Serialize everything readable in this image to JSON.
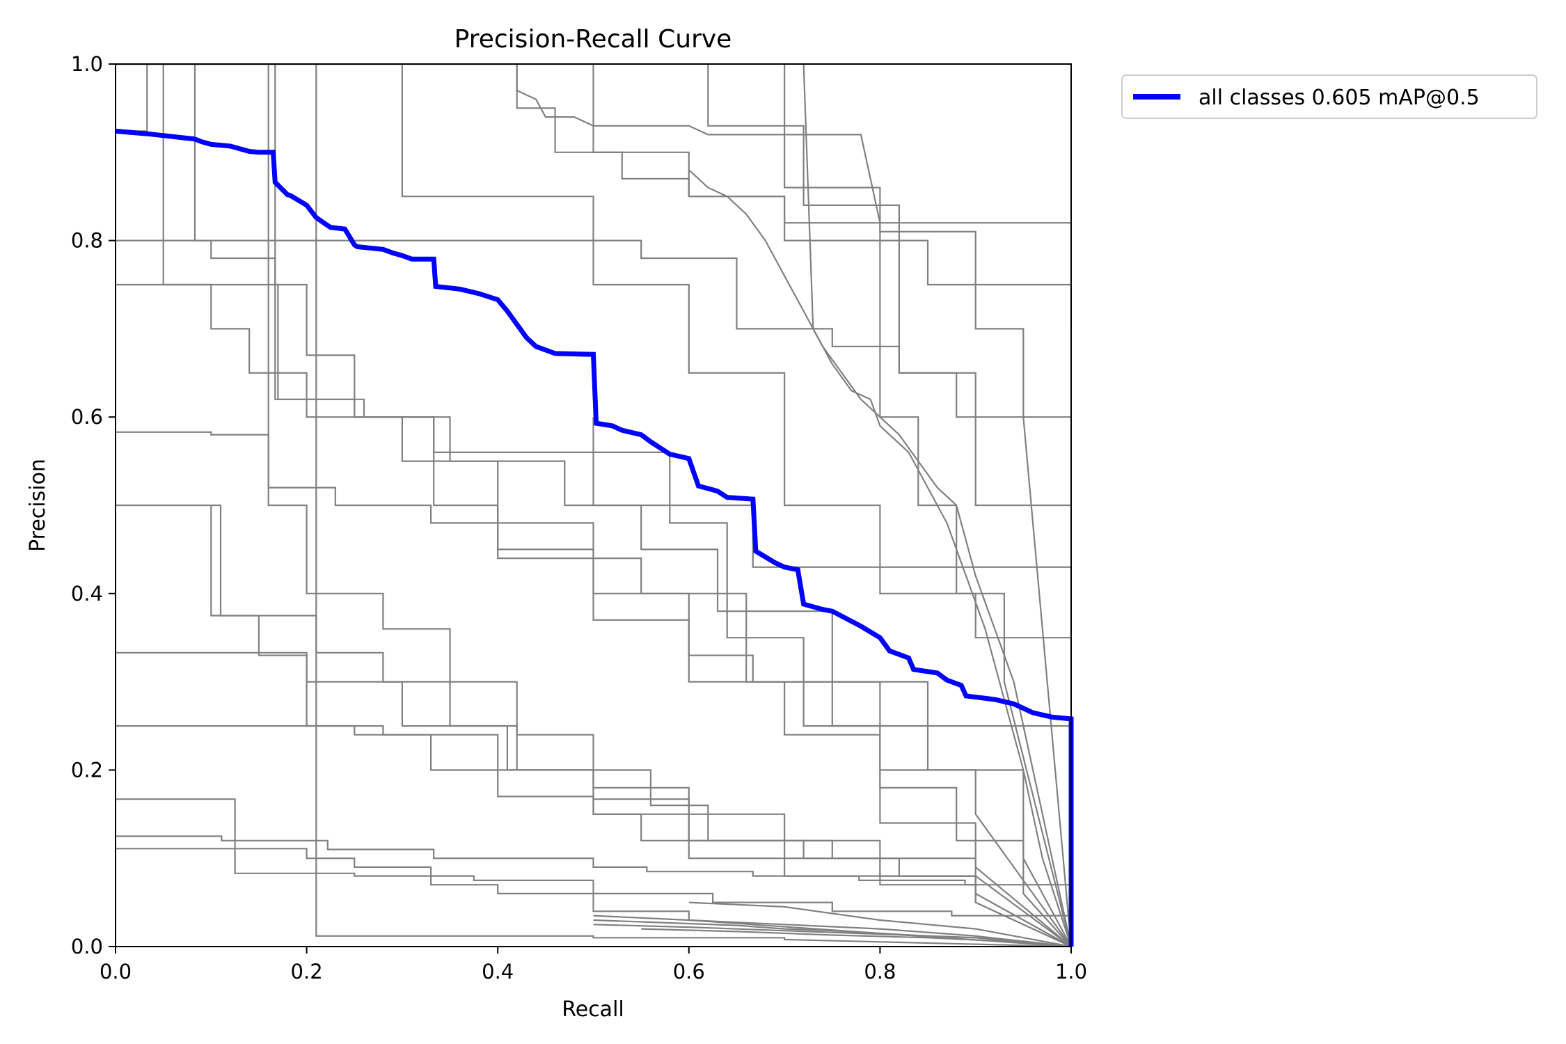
{
  "chart_data": {
    "type": "line",
    "title": "Precision-Recall Curve",
    "xlabel": "Recall",
    "ylabel": "Precision",
    "xlim": [
      0,
      1
    ],
    "ylim": [
      0,
      1
    ],
    "x_ticks": [
      "0.0",
      "0.2",
      "0.4",
      "0.6",
      "0.8",
      "1.0"
    ],
    "y_ticks": [
      "0.0",
      "0.2",
      "0.4",
      "0.6",
      "0.8",
      "1.0"
    ],
    "grid": false,
    "legend_position": "outside-top-right",
    "colors": {
      "summary": "#0000ff",
      "per_class": "#808080"
    },
    "series": [
      {
        "name": "all classes 0.605 mAP@0.5",
        "color": "#0000ff",
        "x": [
          0.0,
          0.033,
          0.083,
          0.09,
          0.1,
          0.12,
          0.14,
          0.15,
          0.165,
          0.167,
          0.18,
          0.183,
          0.2,
          0.21,
          0.218,
          0.225,
          0.24,
          0.25,
          0.253,
          0.28,
          0.29,
          0.3,
          0.31,
          0.333,
          0.335,
          0.36,
          0.38,
          0.4,
          0.41,
          0.42,
          0.43,
          0.44,
          0.46,
          0.5,
          0.503,
          0.52,
          0.53,
          0.55,
          0.56,
          0.58,
          0.6,
          0.61,
          0.63,
          0.64,
          0.667,
          0.67,
          0.69,
          0.7,
          0.714,
          0.72,
          0.74,
          0.75,
          0.78,
          0.8,
          0.81,
          0.83,
          0.835,
          0.86,
          0.87,
          0.885,
          0.89,
          0.92,
          0.94,
          0.96,
          0.98,
          1.0,
          1.0
        ],
        "y": [
          0.924,
          0.921,
          0.915,
          0.912,
          0.909,
          0.907,
          0.901,
          0.9,
          0.9,
          0.866,
          0.852,
          0.851,
          0.84,
          0.826,
          0.82,
          0.815,
          0.813,
          0.795,
          0.793,
          0.79,
          0.786,
          0.783,
          0.779,
          0.779,
          0.748,
          0.745,
          0.74,
          0.733,
          0.72,
          0.705,
          0.69,
          0.68,
          0.672,
          0.671,
          0.593,
          0.59,
          0.585,
          0.58,
          0.572,
          0.558,
          0.553,
          0.522,
          0.516,
          0.509,
          0.507,
          0.448,
          0.435,
          0.43,
          0.427,
          0.388,
          0.382,
          0.38,
          0.363,
          0.35,
          0.335,
          0.327,
          0.314,
          0.31,
          0.302,
          0.296,
          0.284,
          0.28,
          0.275,
          0.265,
          0.26,
          0.258,
          0.0
        ]
      }
    ],
    "background_series": [
      {
        "x": [
          0.0,
          0.033,
          0.033,
          0.083,
          0.083,
          0.1,
          0.1,
          0.167,
          0.167,
          0.25,
          0.25,
          0.333,
          0.333,
          0.5,
          0.5,
          0.667,
          0.667,
          1.0,
          1.0
        ],
        "y": [
          0.924,
          0.924,
          1.0,
          1.0,
          0.8,
          0.8,
          0.78,
          0.78,
          0.62,
          0.62,
          0.6,
          0.6,
          0.56,
          0.56,
          0.5,
          0.5,
          0.43,
          0.43,
          0.0
        ]
      },
      {
        "x": [
          0.0,
          0.167,
          0.167,
          0.2,
          0.2,
          0.25,
          0.25,
          0.333,
          0.333,
          0.4,
          0.4,
          0.5,
          0.5,
          0.6,
          0.6,
          0.667,
          0.667,
          0.75,
          0.75,
          1.0,
          1.0
        ],
        "y": [
          1.0,
          1.0,
          0.75,
          0.75,
          0.67,
          0.67,
          0.6,
          0.6,
          0.5,
          0.5,
          0.44,
          0.44,
          0.4,
          0.4,
          0.33,
          0.33,
          0.3,
          0.3,
          0.25,
          0.25,
          0.0
        ]
      },
      {
        "x": [
          0.0,
          0.125,
          0.125,
          0.25,
          0.25,
          0.375,
          0.375,
          0.5,
          0.5,
          0.625,
          0.625,
          0.75,
          0.75,
          0.875,
          0.875,
          1.0,
          1.0
        ],
        "y": [
          0.167,
          0.167,
          0.083,
          0.083,
          0.08,
          0.08,
          0.075,
          0.075,
          0.06,
          0.06,
          0.05,
          0.05,
          0.04,
          0.04,
          0.035,
          0.035,
          0.0
        ]
      },
      {
        "x": [
          0.0,
          0.11,
          0.11,
          0.21,
          0.21,
          0.28,
          0.28,
          0.35,
          0.35,
          0.41,
          0.41,
          0.5,
          0.5,
          0.6,
          0.6,
          0.7,
          0.7,
          0.8,
          0.8,
          0.9,
          0.9,
          1.0
        ],
        "y": [
          0.5,
          0.5,
          0.375,
          0.375,
          0.333,
          0.333,
          0.3,
          0.3,
          0.25,
          0.25,
          0.2,
          0.2,
          0.15,
          0.15,
          0.12,
          0.12,
          0.1,
          0.1,
          0.08,
          0.08,
          0.06,
          0.0
        ]
      },
      {
        "x": [
          0.0,
          0.2,
          0.2,
          0.3,
          0.3,
          0.42,
          0.42,
          0.5,
          0.5,
          0.6,
          0.6,
          0.75,
          0.75,
          0.82,
          0.82,
          0.9,
          0.9,
          1.0
        ],
        "y": [
          0.333,
          0.333,
          0.3,
          0.3,
          0.25,
          0.25,
          0.2,
          0.2,
          0.167,
          0.167,
          0.12,
          0.12,
          0.1,
          0.1,
          0.08,
          0.08,
          0.06,
          0.0
        ]
      },
      {
        "x": [
          0.0,
          0.1,
          0.1,
          0.16,
          0.16,
          0.23,
          0.23,
          0.33,
          0.33,
          0.5,
          0.5,
          0.55,
          0.55,
          0.66,
          0.66,
          0.8,
          0.8,
          0.9,
          0.9,
          1.0
        ],
        "y": [
          0.583,
          0.583,
          0.58,
          0.58,
          0.52,
          0.52,
          0.5,
          0.5,
          0.48,
          0.48,
          0.44,
          0.44,
          0.4,
          0.4,
          0.3,
          0.3,
          0.2,
          0.2,
          0.15,
          0.0
        ]
      },
      {
        "x": [
          0.0,
          0.25,
          0.25,
          0.4,
          0.4,
          0.5,
          0.5,
          0.6,
          0.6,
          0.7,
          0.7,
          0.8,
          0.8,
          0.9,
          0.9,
          1.0
        ],
        "y": [
          0.25,
          0.25,
          0.24,
          0.24,
          0.2,
          0.2,
          0.18,
          0.18,
          0.15,
          0.15,
          0.12,
          0.12,
          0.1,
          0.1,
          0.08,
          0.0
        ]
      },
      {
        "x": [
          0.0,
          0.111,
          0.111,
          0.222,
          0.222,
          0.333,
          0.333,
          0.5,
          0.5,
          0.556,
          0.556,
          0.667,
          0.667,
          0.778,
          0.778,
          0.889,
          0.889,
          1.0,
          1.0
        ],
        "y": [
          0.125,
          0.125,
          0.12,
          0.12,
          0.11,
          0.11,
          0.1,
          0.1,
          0.09,
          0.09,
          0.085,
          0.085,
          0.08,
          0.08,
          0.075,
          0.075,
          0.07,
          0.07,
          0.0
        ]
      },
      {
        "x": [
          0.0,
          0.2,
          0.2,
          0.25,
          0.25,
          0.33,
          0.33,
          0.4,
          0.4,
          0.5,
          0.5,
          0.6,
          0.6,
          1.0
        ],
        "y": [
          0.111,
          0.111,
          0.1,
          0.1,
          0.09,
          0.09,
          0.07,
          0.07,
          0.06,
          0.06,
          0.04,
          0.04,
          0.03,
          0.0
        ]
      },
      {
        "x": [
          0.21,
          0.21,
          0.5,
          0.5,
          0.7,
          0.7,
          1.0
        ],
        "y": [
          1.0,
          0.012,
          0.012,
          0.01,
          0.01,
          0.008,
          0.0
        ]
      },
      {
        "x": [
          0.0,
          0.5,
          0.5,
          0.6,
          0.6,
          0.7,
          0.7,
          0.8,
          0.8,
          0.85,
          0.85,
          0.9,
          0.9,
          0.95,
          0.95,
          1.0
        ],
        "y": [
          1.0,
          1.0,
          0.9,
          0.9,
          0.85,
          0.85,
          0.82,
          0.82,
          0.8,
          0.8,
          0.75,
          0.75,
          0.7,
          0.7,
          0.6,
          0.0
        ]
      },
      {
        "x": [
          0.0,
          0.42,
          0.42,
          0.46,
          0.46,
          0.53,
          0.53,
          0.6,
          0.6,
          0.7,
          0.7,
          0.8,
          0.8,
          0.84,
          0.84,
          0.88,
          0.88,
          0.93,
          0.93,
          1.0
        ],
        "y": [
          1.0,
          1.0,
          0.95,
          0.95,
          0.9,
          0.9,
          0.87,
          0.87,
          0.85,
          0.85,
          0.8,
          0.8,
          0.6,
          0.6,
          0.5,
          0.5,
          0.4,
          0.4,
          0.3,
          0.0
        ]
      },
      {
        "x": [
          0.5,
          0.55,
          0.6,
          0.65,
          0.7,
          0.75,
          0.8,
          0.85,
          0.9,
          0.95,
          1.0
        ],
        "y": [
          0.03,
          0.028,
          0.026,
          0.024,
          0.02,
          0.018,
          0.015,
          0.012,
          0.01,
          0.006,
          0.0
        ]
      },
      {
        "x": [
          0.5,
          0.6,
          0.7,
          0.8,
          0.9,
          1.0
        ],
        "y": [
          0.025,
          0.022,
          0.018,
          0.014,
          0.01,
          0.0
        ]
      },
      {
        "x": [
          0.5,
          0.6,
          0.7,
          0.8,
          0.9,
          1.0
        ],
        "y": [
          0.035,
          0.03,
          0.025,
          0.02,
          0.012,
          0.0
        ]
      },
      {
        "x": [
          0.6,
          0.7,
          0.8,
          0.9,
          1.0
        ],
        "y": [
          0.05,
          0.045,
          0.03,
          0.02,
          0.0
        ]
      },
      {
        "x": [
          0.55,
          0.65,
          0.75,
          0.85,
          0.95,
          1.0
        ],
        "y": [
          0.02,
          0.017,
          0.013,
          0.01,
          0.005,
          0.0
        ]
      },
      {
        "x": [
          0.0,
          0.3,
          0.3,
          0.5,
          0.5,
          0.6,
          0.6,
          0.7,
          0.7,
          0.8,
          0.8,
          0.9,
          0.9,
          1.0
        ],
        "y": [
          1.0,
          1.0,
          0.85,
          0.85,
          0.75,
          0.75,
          0.65,
          0.65,
          0.5,
          0.5,
          0.4,
          0.4,
          0.35,
          0.35
        ]
      },
      {
        "x": [
          0.0,
          0.55,
          0.55,
          0.65,
          0.65,
          0.75,
          0.75,
          0.82,
          0.82,
          0.88,
          0.88,
          1.0
        ],
        "y": [
          0.8,
          0.8,
          0.78,
          0.78,
          0.7,
          0.7,
          0.68,
          0.68,
          0.65,
          0.65,
          0.6,
          0.6
        ]
      },
      {
        "x": [
          0.42,
          0.42,
          0.44,
          0.45,
          0.48,
          0.5,
          0.52,
          0.54,
          0.56,
          0.58,
          0.6,
          0.62,
          0.63,
          0.65,
          0.67,
          0.7,
          0.72,
          0.74,
          0.76,
          0.78,
          0.8,
          0.82,
          0.84,
          0.86,
          0.88,
          0.9,
          0.92,
          0.94,
          0.96,
          0.98,
          1.0
        ],
        "y": [
          1.0,
          0.97,
          0.96,
          0.94,
          0.94,
          0.93,
          0.93,
          0.93,
          0.93,
          0.93,
          0.93,
          0.92,
          0.92,
          0.92,
          0.92,
          0.92,
          0.92,
          0.92,
          0.92,
          0.92,
          0.82,
          0.82,
          0.82,
          0.82,
          0.82,
          0.82,
          0.82,
          0.82,
          0.82,
          0.82,
          0.82
        ]
      },
      {
        "x": [
          0.6,
          0.62,
          0.64,
          0.66,
          0.68,
          0.7,
          0.72,
          0.74,
          0.76,
          0.78,
          0.8,
          0.82,
          0.84,
          0.86,
          0.88,
          0.9,
          0.92,
          0.94,
          0.96,
          1.0
        ],
        "y": [
          0.88,
          0.86,
          0.85,
          0.83,
          0.8,
          0.76,
          0.72,
          0.68,
          0.65,
          0.62,
          0.6,
          0.58,
          0.55,
          0.52,
          0.5,
          0.42,
          0.36,
          0.3,
          0.2,
          0.0
        ]
      },
      {
        "x": [
          0.72,
          0.73,
          0.75,
          0.77,
          0.79,
          0.8,
          0.81,
          0.83,
          0.85,
          0.87,
          0.89,
          0.91,
          0.93,
          0.95,
          0.97,
          1.0
        ],
        "y": [
          1.0,
          0.7,
          0.66,
          0.63,
          0.62,
          0.59,
          0.58,
          0.56,
          0.52,
          0.48,
          0.42,
          0.36,
          0.28,
          0.2,
          0.1,
          0.0
        ]
      },
      {
        "x": [
          0.5,
          0.5,
          0.58,
          0.58,
          0.64,
          0.64,
          0.72,
          0.72,
          0.8,
          0.8,
          0.88,
          0.88,
          0.95,
          0.95,
          1.0
        ],
        "y": [
          0.6,
          0.56,
          0.56,
          0.48,
          0.48,
          0.35,
          0.35,
          0.25,
          0.25,
          0.18,
          0.18,
          0.12,
          0.12,
          0.06,
          0.0
        ]
      },
      {
        "x": [
          0.0,
          0.17,
          0.17,
          0.26,
          0.26,
          0.35,
          0.35,
          0.47,
          0.47,
          0.55,
          0.55,
          0.63,
          0.63,
          0.75,
          0.75,
          0.85,
          0.85,
          0.95,
          0.95,
          1.0
        ],
        "y": [
          0.75,
          0.75,
          0.62,
          0.62,
          0.6,
          0.6,
          0.55,
          0.55,
          0.5,
          0.5,
          0.45,
          0.45,
          0.38,
          0.38,
          0.3,
          0.3,
          0.2,
          0.2,
          0.1,
          0.0
        ]
      },
      {
        "x": [
          0.05,
          0.05,
          0.1,
          0.1,
          0.14,
          0.14,
          0.2,
          0.2,
          0.3,
          0.3,
          0.4,
          0.4,
          0.5,
          0.5,
          0.6,
          0.6,
          0.7,
          0.7,
          0.8,
          0.8,
          0.9,
          0.9,
          1.0
        ],
        "y": [
          1.0,
          0.75,
          0.75,
          0.7,
          0.7,
          0.65,
          0.65,
          0.6,
          0.6,
          0.55,
          0.55,
          0.45,
          0.45,
          0.37,
          0.37,
          0.3,
          0.3,
          0.24,
          0.24,
          0.14,
          0.14,
          0.09,
          0.0
        ]
      },
      {
        "x": [
          0.16,
          0.16,
          0.2,
          0.2,
          0.28,
          0.28,
          0.35,
          0.35,
          0.42,
          0.42,
          0.5,
          0.5,
          0.56,
          0.56,
          0.62,
          0.62,
          0.72,
          0.72,
          0.8,
          0.8,
          0.9,
          0.9,
          1.0
        ],
        "y": [
          1.0,
          0.5,
          0.5,
          0.4,
          0.4,
          0.36,
          0.36,
          0.3,
          0.3,
          0.24,
          0.24,
          0.2,
          0.2,
          0.16,
          0.16,
          0.12,
          0.12,
          0.1,
          0.1,
          0.08,
          0.08,
          0.05,
          0.0
        ]
      },
      {
        "x": [
          0.1,
          0.1,
          0.15,
          0.15,
          0.2,
          0.2,
          0.28,
          0.28,
          0.33,
          0.33,
          0.4,
          0.4,
          0.5,
          0.5,
          0.55,
          0.55,
          0.6,
          0.6,
          0.7,
          0.7,
          0.8,
          0.8,
          0.9,
          0.9,
          1.0
        ],
        "y": [
          0.5,
          0.375,
          0.375,
          0.33,
          0.33,
          0.25,
          0.25,
          0.24,
          0.24,
          0.2,
          0.2,
          0.17,
          0.17,
          0.15,
          0.15,
          0.12,
          0.12,
          0.1,
          0.1,
          0.08,
          0.08,
          0.07,
          0.07,
          0.05,
          0.0
        ]
      },
      {
        "x": [
          0.7,
          0.7,
          0.8,
          0.8,
          0.9,
          0.9,
          1.0,
          1.0
        ],
        "y": [
          1.0,
          0.86,
          0.86,
          0.81,
          0.81,
          0.75,
          0.75,
          0.7
        ]
      },
      {
        "x": [
          0.62,
          0.62,
          0.72,
          0.72,
          0.82,
          0.82,
          0.9,
          0.9,
          1.0
        ],
        "y": [
          1.0,
          0.93,
          0.93,
          0.84,
          0.84,
          0.65,
          0.65,
          0.5,
          0.5
        ]
      }
    ]
  }
}
